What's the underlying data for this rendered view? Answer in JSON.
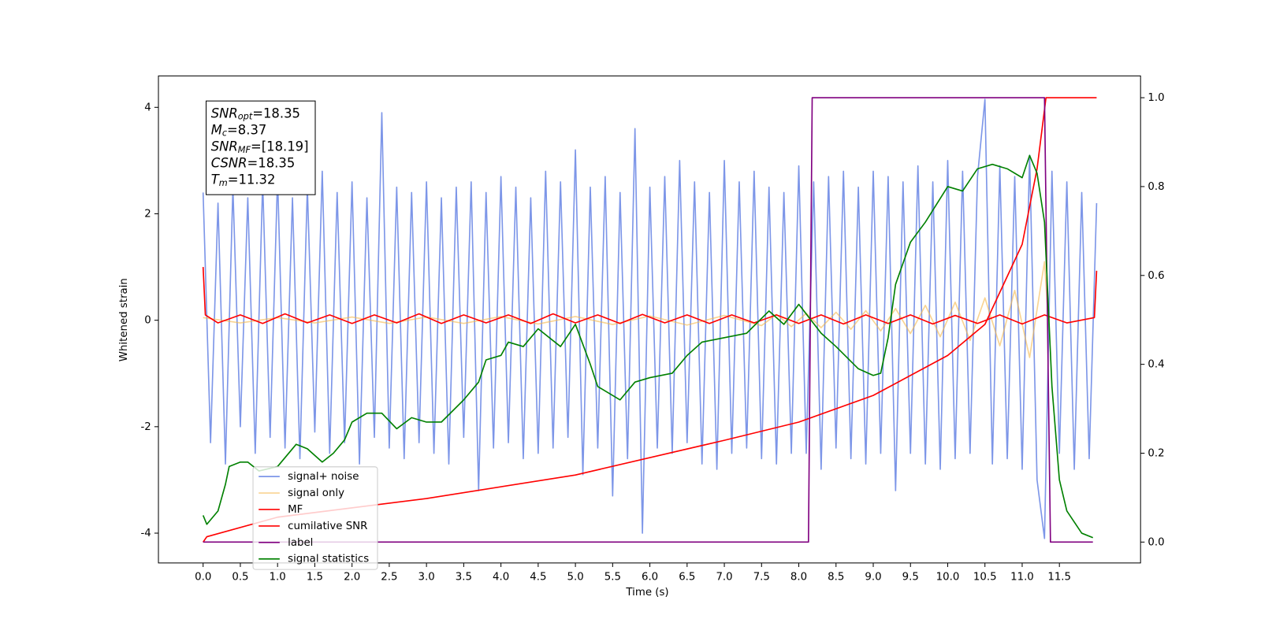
{
  "chart_data": {
    "type": "line",
    "xlabel": "Time (s)",
    "ylabel": "Whitened strain",
    "xlim": [
      -0.6,
      12.59
    ],
    "ylim": [
      -4.56,
      4.59
    ],
    "y2lim": [
      -0.047,
      1.049
    ],
    "xticks": [
      {
        "value": 0,
        "label": "0.0"
      },
      0.5,
      {
        "value": 1,
        "label": "1.0"
      },
      1.5,
      {
        "value": 2,
        "label": "2.0"
      },
      2.5,
      {
        "value": 3,
        "label": "3.0"
      },
      3.5,
      {
        "value": 4,
        "label": "4.0"
      },
      4.5,
      {
        "value": 5,
        "label": "5.0"
      },
      5.5,
      {
        "value": 6,
        "label": "6.0"
      },
      6.5,
      {
        "value": 7,
        "label": "7.0"
      },
      7.5,
      {
        "value": 8,
        "label": "8.0"
      },
      8.5,
      {
        "value": 9,
        "label": "9.0"
      },
      9.5,
      {
        "value": 10,
        "label": "10.0"
      },
      10.5,
      {
        "value": 11,
        "label": "11.0"
      },
      11.5
    ],
    "yticks": [
      -4,
      -2,
      0,
      2,
      4
    ],
    "y2ticks": [
      {
        "value": 0,
        "label": "0.0"
      },
      0.2,
      0.4,
      0.6,
      0.8,
      {
        "value": 1,
        "label": "1.0"
      }
    ],
    "grid": false,
    "legend": "lower left",
    "annotation": [
      {
        "base": "SNR",
        "sub": "opt",
        "text": "=18.35"
      },
      {
        "base": "M",
        "sub": "c",
        "text": "=8.37"
      },
      {
        "base": "SNR",
        "sub": "MF",
        "text": "=[18.19]"
      },
      {
        "base": "CSNR",
        "text": "=18.35"
      },
      {
        "base": "T",
        "sub": "m",
        "text": "=11.32"
      }
    ],
    "series": [
      {
        "name": "signal+ noise",
        "color": "#6f8be6",
        "opacity": 0.9,
        "x": [
          0,
          0.1,
          0.2,
          0.3,
          0.4,
          0.5,
          0.6,
          0.7,
          0.8,
          0.9,
          1,
          1.1,
          1.2,
          1.3,
          1.4,
          1.5,
          1.6,
          1.7,
          1.8,
          1.9,
          2,
          2.1,
          2.2,
          2.3,
          2.4,
          2.5,
          2.6,
          2.7,
          2.8,
          2.9,
          3,
          3.1,
          3.2,
          3.3,
          3.4,
          3.5,
          3.6,
          3.7,
          3.8,
          3.9,
          4,
          4.1,
          4.2,
          4.3,
          4.4,
          4.5,
          4.6,
          4.7,
          4.8,
          4.9,
          5,
          5.1,
          5.2,
          5.3,
          5.4,
          5.5,
          5.6,
          5.7,
          5.8,
          5.9,
          6,
          6.1,
          6.2,
          6.3,
          6.4,
          6.5,
          6.6,
          6.7,
          6.8,
          6.9,
          7,
          7.1,
          7.2,
          7.3,
          7.4,
          7.5,
          7.6,
          7.7,
          7.8,
          7.9,
          8,
          8.1,
          8.2,
          8.3,
          8.4,
          8.5,
          8.6,
          8.7,
          8.8,
          8.9,
          9,
          9.1,
          9.2,
          9.3,
          9.4,
          9.5,
          9.6,
          9.7,
          9.8,
          9.9,
          10,
          10.1,
          10.2,
          10.3,
          10.4,
          10.5,
          10.6,
          10.7,
          10.8,
          10.9,
          11,
          11.1,
          11.2,
          11.3,
          11.4,
          11.5,
          11.6,
          11.7,
          11.8,
          11.9,
          12
        ],
        "values": [
          2.4,
          -2.3,
          2.2,
          -2.7,
          2.5,
          -2.0,
          2.3,
          -2.5,
          2.6,
          -2.2,
          2.7,
          -2.4,
          2.3,
          -2.6,
          2.5,
          -2.1,
          2.8,
          -2.5,
          2.4,
          -2.3,
          2.6,
          -2.7,
          2.3,
          -2.2,
          3.9,
          -2.4,
          2.5,
          -2.6,
          2.4,
          -2.3,
          2.6,
          -2.5,
          2.3,
          -2.7,
          2.5,
          -2.2,
          2.6,
          -3.2,
          2.4,
          -2.4,
          2.7,
          -2.3,
          2.5,
          -2.6,
          2.3,
          -2.5,
          2.8,
          -2.4,
          2.6,
          -2.2,
          3.2,
          -2.9,
          2.5,
          -2.4,
          2.7,
          -3.3,
          2.4,
          -2.6,
          3.6,
          -4.0,
          2.5,
          -2.4,
          2.7,
          -2.5,
          3.0,
          -2.3,
          2.6,
          -2.7,
          2.4,
          -2.8,
          3.0,
          -2.5,
          2.6,
          -2.4,
          2.8,
          -2.6,
          2.5,
          -2.7,
          2.4,
          -2.5,
          2.9,
          -2.5,
          2.6,
          -2.8,
          2.7,
          -2.4,
          2.8,
          -2.6,
          2.5,
          -2.7,
          2.8,
          -2.5,
          2.7,
          -3.2,
          2.6,
          -2.5,
          2.9,
          -2.7,
          2.6,
          -2.8,
          3.0,
          -2.6,
          2.8,
          -2.5,
          2.7,
          4.15,
          -2.7,
          2.9,
          -2.6,
          2.7,
          -2.8,
          3.1,
          -3.0,
          -4.1,
          2.8,
          -2.5,
          2.6,
          -2.8,
          2.4,
          -2.6,
          2.2
        ]
      },
      {
        "name": "signal only",
        "color": "#f5b84a",
        "opacity": 0.6,
        "x": [
          0,
          0.5,
          1,
          1.5,
          2,
          2.5,
          3,
          3.5,
          4,
          4.5,
          5,
          5.5,
          6,
          6.5,
          7,
          7.5,
          7.7,
          7.9,
          8.1,
          8.3,
          8.5,
          8.7,
          8.9,
          9.1,
          9.3,
          9.5,
          9.7,
          9.9,
          10.1,
          10.3,
          10.5,
          10.7,
          10.9,
          11.1,
          11.3,
          11.35
        ],
        "values": [
          0.05,
          -0.05,
          0.05,
          -0.05,
          0.06,
          -0.06,
          0.06,
          -0.06,
          0.07,
          -0.07,
          0.07,
          -0.08,
          0.08,
          -0.09,
          0.09,
          -0.1,
          0.11,
          -0.12,
          0.13,
          -0.14,
          0.15,
          -0.17,
          0.18,
          -0.2,
          0.22,
          -0.25,
          0.28,
          -0.31,
          0.34,
          -0.38,
          0.42,
          -0.48,
          0.56,
          -0.7,
          1.1,
          0
        ]
      },
      {
        "name": "MF",
        "color": "#ff0000",
        "x": [
          0,
          0.03,
          0.2,
          0.5,
          0.8,
          1.1,
          1.4,
          1.7,
          2,
          2.3,
          2.6,
          2.9,
          3.2,
          3.5,
          3.8,
          4.1,
          4.4,
          4.7,
          5,
          5.3,
          5.6,
          5.9,
          6.2,
          6.5,
          6.8,
          7.1,
          7.4,
          7.7,
          8,
          8.3,
          8.6,
          8.9,
          9.2,
          9.5,
          9.8,
          10.1,
          10.4,
          10.7,
          11,
          11.3,
          11.6,
          11.97,
          12
        ],
        "values": [
          1.0,
          0.1,
          -0.05,
          0.1,
          -0.06,
          0.12,
          -0.05,
          0.1,
          -0.06,
          0.1,
          -0.05,
          0.12,
          -0.06,
          0.1,
          -0.05,
          0.1,
          -0.06,
          0.12,
          -0.05,
          0.1,
          -0.06,
          0.11,
          -0.05,
          0.1,
          -0.06,
          0.1,
          -0.05,
          0.1,
          -0.06,
          0.1,
          -0.07,
          0.1,
          -0.06,
          0.1,
          -0.07,
          0.09,
          -0.06,
          0.1,
          -0.07,
          0.1,
          -0.05,
          0.05,
          0.93
        ]
      },
      {
        "name": "cumilative SNR",
        "color": "#ff0000",
        "axis": "y2",
        "x": [
          0,
          0.05,
          1,
          3,
          5,
          7,
          8,
          9,
          10,
          10.5,
          11,
          11.2,
          11.32,
          12
        ],
        "values": [
          0.0,
          0.012,
          0.056,
          0.098,
          0.151,
          0.229,
          0.27,
          0.33,
          0.42,
          0.49,
          0.67,
          0.84,
          1.0,
          1.0
        ]
      },
      {
        "name": "label",
        "color": "#800080",
        "axis": "y2",
        "x": [
          0,
          8.13,
          8.18,
          11.3,
          11.38,
          11.95
        ],
        "values": [
          0,
          0,
          1.0,
          1.0,
          0,
          0
        ]
      },
      {
        "name": "signal statistics",
        "color": "#008000",
        "axis": "y2",
        "x": [
          0,
          0.05,
          0.2,
          0.3,
          0.35,
          0.5,
          0.6,
          0.75,
          1.0,
          1.25,
          1.4,
          1.6,
          1.75,
          1.9,
          2.0,
          2.2,
          2.4,
          2.6,
          2.8,
          3.0,
          3.2,
          3.5,
          3.7,
          3.8,
          4.0,
          4.1,
          4.3,
          4.5,
          4.8,
          5.0,
          5.2,
          5.3,
          5.6,
          5.8,
          6.0,
          6.3,
          6.5,
          6.7,
          7.0,
          7.3,
          7.6,
          7.8,
          8.0,
          8.3,
          8.5,
          8.8,
          9.0,
          9.1,
          9.2,
          9.3,
          9.5,
          9.7,
          10.0,
          10.2,
          10.4,
          10.6,
          10.8,
          11.0,
          11.1,
          11.2,
          11.3,
          11.4,
          11.5,
          11.6,
          11.8,
          11.95
        ],
        "values": [
          0.06,
          0.04,
          0.07,
          0.13,
          0.17,
          0.18,
          0.18,
          0.16,
          0.17,
          0.22,
          0.21,
          0.18,
          0.2,
          0.23,
          0.27,
          0.29,
          0.29,
          0.255,
          0.28,
          0.27,
          0.27,
          0.32,
          0.36,
          0.41,
          0.42,
          0.45,
          0.44,
          0.48,
          0.44,
          0.49,
          0.4,
          0.35,
          0.32,
          0.36,
          0.37,
          0.38,
          0.42,
          0.45,
          0.46,
          0.47,
          0.52,
          0.49,
          0.535,
          0.47,
          0.44,
          0.39,
          0.375,
          0.38,
          0.46,
          0.58,
          0.675,
          0.72,
          0.8,
          0.79,
          0.84,
          0.85,
          0.84,
          0.82,
          0.87,
          0.83,
          0.72,
          0.35,
          0.14,
          0.07,
          0.02,
          0.01
        ]
      }
    ]
  }
}
